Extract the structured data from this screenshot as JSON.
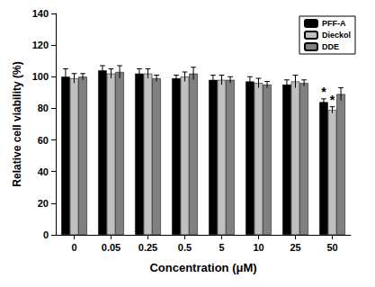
{
  "chart_data": {
    "type": "bar",
    "x_label": "Concentration (μM)",
    "y_label": "Relative cell viability (%)",
    "categories": [
      "0",
      "0.05",
      "0.25",
      "0.5",
      "5",
      "10",
      "25",
      "50"
    ],
    "series": [
      {
        "name": "PFF-A",
        "color": "#000000",
        "values": [
          100,
          104,
          102,
          99,
          98,
          97,
          95,
          84
        ],
        "errors": [
          5,
          3,
          3,
          2,
          3,
          3,
          3,
          2
        ]
      },
      {
        "name": "Dieckol",
        "color": "#c0c0c0",
        "values": [
          99,
          102,
          102,
          100,
          98,
          96,
          97,
          79
        ],
        "errors": [
          3,
          3,
          3,
          3,
          3,
          3,
          4,
          2
        ]
      },
      {
        "name": "DDE",
        "color": "#808080",
        "values": [
          100,
          103,
          99,
          102,
          98,
          95,
          96,
          89
        ],
        "errors": [
          2,
          4,
          2,
          4,
          2,
          2,
          2,
          4
        ]
      }
    ],
    "annotations": [
      {
        "text": "*",
        "series": "PFF-A",
        "category": "50"
      },
      {
        "text": "*",
        "series": "Dieckol",
        "category": "50"
      }
    ],
    "ylim": [
      0,
      140
    ],
    "yticks": [
      0,
      20,
      40,
      60,
      80,
      100,
      120,
      140
    ],
    "grid": false,
    "legend": "upper right"
  }
}
